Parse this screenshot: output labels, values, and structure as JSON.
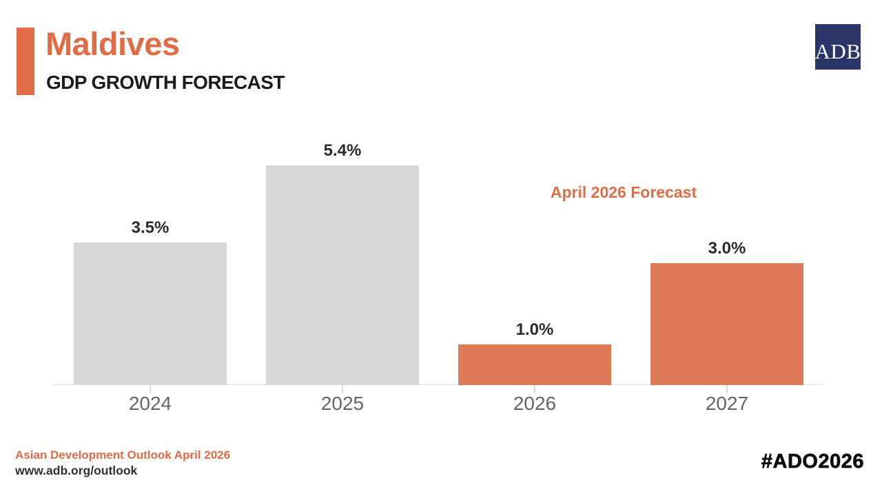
{
  "header": {
    "title": "Maldives",
    "subtitle": "GDP GROWTH FORECAST",
    "logo_text": "ADB"
  },
  "colors": {
    "accent_orange": "#E06C45",
    "bar_orange": "#DF7A58",
    "bar_gray": "#D8D8D8",
    "logo_navy": "#2A3568",
    "axis_line": "#ECECEC",
    "tick": "#D9D9D9",
    "year_label": "#646464",
    "value_label": "#2B2B2B"
  },
  "chart_data": {
    "type": "bar",
    "title": "Maldives GDP Growth Forecast",
    "categories": [
      "2024",
      "2025",
      "2026",
      "2027"
    ],
    "values": [
      3.5,
      5.4,
      1.0,
      3.0
    ],
    "value_labels": [
      "3.5%",
      "5.4%",
      "1.0%",
      "3.0%"
    ],
    "bar_color_roles": [
      "bar_gray",
      "bar_gray",
      "bar_orange",
      "bar_orange"
    ],
    "annotation": "April 2026 Forecast",
    "unit": "percent",
    "ylim": [
      0,
      6
    ],
    "grid": false,
    "legend": "none",
    "xlabel": "",
    "ylabel": ""
  },
  "footer": {
    "source": "Asian Development Outlook April 2026",
    "url": "www.adb.org/outlook",
    "hashtag": "#ADO2026"
  }
}
